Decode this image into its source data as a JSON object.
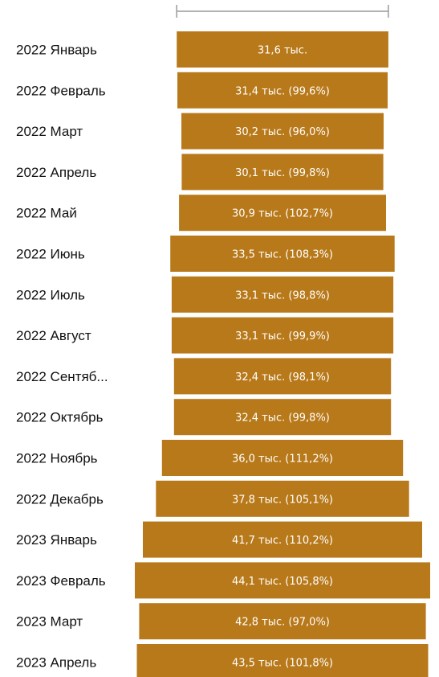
{
  "chart_data": {
    "type": "bar",
    "orientation": "horizontal",
    "layout": "centered-funnel",
    "color": "#B8791A",
    "categories": [
      "2022 Январь",
      "2022 Февраль",
      "2022 Март",
      "2022 Апрель",
      "2022 Май",
      "2022 Июнь",
      "2022 Июль",
      "2022 Август",
      "2022 Сентяб...",
      "2022 Октябрь",
      "2022 Ноябрь",
      "2022 Декабрь",
      "2023 Январь",
      "2023 Февраль",
      "2023 Март",
      "2023 Апрель"
    ],
    "values": [
      31.6,
      31.4,
      30.2,
      30.1,
      30.9,
      33.5,
      33.1,
      33.1,
      32.4,
      32.4,
      36.0,
      37.8,
      41.7,
      44.1,
      42.8,
      43.5
    ],
    "unit": "тыс.",
    "data_labels": [
      "31,6 тыс.",
      "31,4 тыс. (99,6%)",
      "30,2 тыс. (96,0%)",
      "30,1 тыс. (99,8%)",
      "30,9 тыс. (102,7%)",
      "33,5 тыс. (108,3%)",
      "33,1 тыс. (98,8%)",
      "33,1 тыс. (99,9%)",
      "32,4 тыс. (98,1%)",
      "32,4 тыс. (99,8%)",
      "36,0 тыс. (111,2%)",
      "37,8 тыс. (105,1%)",
      "41,7 тыс. (110,2%)",
      "44,1 тыс. (105,8%)",
      "42,8 тыс. (97,0%)",
      "43,5 тыс. (101,8%)"
    ],
    "title": "",
    "xlabel": "",
    "ylabel": "",
    "xlim": [
      0,
      44.1
    ],
    "grid": false,
    "legend": "none"
  }
}
